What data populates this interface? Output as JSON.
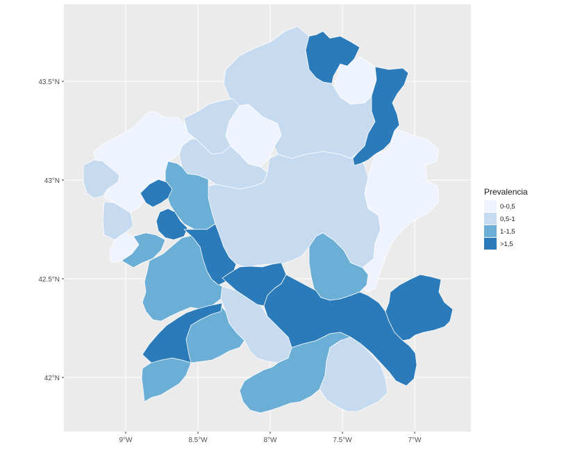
{
  "map": {
    "legend": {
      "title": "Prevalencia",
      "items": [
        {
          "label": "0-0,5",
          "color": "#eff3ff"
        },
        {
          "label": "0,5-1",
          "color": "#c6dbef"
        },
        {
          "label": "1-1,5",
          "color": "#6baed6"
        },
        {
          "label": ">1,5",
          "color": "#2b7bba"
        }
      ]
    },
    "x_ticks": [
      "9°W",
      "8.5°W",
      "8°W",
      "7.5°W",
      "7°W"
    ],
    "y_ticks": [
      "43.5°N",
      "43°N",
      "42.5°N",
      "42°N"
    ],
    "colors": {
      "panel_background": "#ebebeb",
      "gridline": "#ffffff",
      "region_border": "#ffffff"
    }
  }
}
